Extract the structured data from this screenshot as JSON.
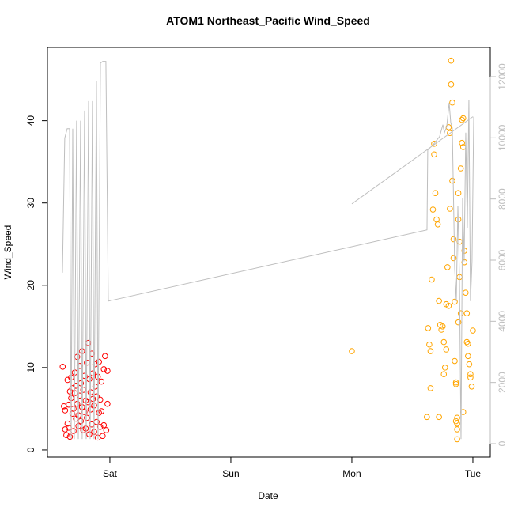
{
  "chart_data": {
    "type": "scatter",
    "title": "ATOM1 Northeast_Pacific Wind_Speed",
    "xlabel": "Date",
    "ylabel": "Wind_Speed",
    "xlim": [
      -0.516,
      3.144
    ],
    "xticks": [
      {
        "value": 0,
        "label": "Sat"
      },
      {
        "value": 1,
        "label": "Sun"
      },
      {
        "value": 2,
        "label": "Mon"
      },
      {
        "value": 3,
        "label": "Tue"
      }
    ],
    "ylim": [
      -0.87,
      48.9
    ],
    "yticks": [
      0,
      10,
      20,
      30,
      40
    ],
    "y2lim": [
      -440,
      12957
    ],
    "y2ticks": [
      0,
      2000,
      4000,
      6000,
      8000,
      10000,
      12000
    ],
    "series": [
      {
        "color": "#ff0000",
        "x": [
          -0.39,
          -0.38,
          -0.37,
          -0.37,
          -0.36,
          -0.35,
          -0.35,
          -0.34,
          -0.34,
          -0.33,
          -0.33,
          -0.32,
          -0.32,
          -0.31,
          -0.31,
          -0.3,
          -0.3,
          -0.29,
          -0.29,
          -0.28,
          -0.28,
          -0.27,
          -0.27,
          -0.26,
          -0.26,
          -0.25,
          -0.25,
          -0.24,
          -0.24,
          -0.23,
          -0.23,
          -0.22,
          -0.22,
          -0.21,
          -0.21,
          -0.2,
          -0.2,
          -0.19,
          -0.19,
          -0.18,
          -0.18,
          -0.17,
          -0.17,
          -0.16,
          -0.16,
          -0.15,
          -0.15,
          -0.14,
          -0.14,
          -0.13,
          -0.13,
          -0.12,
          -0.12,
          -0.11,
          -0.11,
          -0.1,
          -0.1,
          -0.09,
          -0.09,
          -0.08,
          -0.08,
          -0.07,
          -0.07,
          -0.06,
          -0.05,
          -0.05,
          -0.04,
          -0.03,
          -0.02,
          -0.02
        ],
        "values": [
          10.1,
          5.3,
          4.8,
          2.5,
          1.8,
          3.2,
          8.5,
          2.7,
          5.5,
          7.1,
          1.6,
          6.3,
          8.8,
          4.4,
          7.5,
          2.3,
          5.0,
          6.9,
          9.4,
          3.8,
          7.8,
          11.3,
          5.6,
          2.9,
          4.2,
          6.6,
          10.2,
          8.1,
          3.5,
          12.0,
          5.2,
          2.4,
          7.3,
          4.6,
          9.0,
          6.0,
          2.6,
          10.6,
          3.9,
          13.0,
          5.8,
          8.6,
          1.9,
          4.9,
          7.0,
          11.7,
          3.1,
          6.2,
          9.3,
          2.2,
          5.4,
          7.7,
          10.4,
          3.4,
          6.5,
          1.5,
          8.9,
          4.5,
          10.7,
          2.8,
          6.1,
          4.7,
          8.3,
          1.7,
          3.0,
          9.8,
          11.4,
          2.4,
          5.6,
          9.6
        ]
      },
      {
        "color": "#ffa500",
        "x": [
          2.0,
          2.62,
          2.63,
          2.64,
          2.65,
          2.65,
          2.66,
          2.67,
          2.68,
          2.68,
          2.69,
          2.7,
          2.71,
          2.72,
          2.72,
          2.73,
          2.74,
          2.75,
          2.76,
          2.76,
          2.77,
          2.78,
          2.78,
          2.79,
          2.8,
          2.8,
          2.81,
          2.81,
          2.82,
          2.82,
          2.83,
          2.83,
          2.84,
          2.84,
          2.85,
          2.85,
          2.86,
          2.86,
          2.87,
          2.87,
          2.87,
          2.88,
          2.88,
          2.89,
          2.89,
          2.9,
          2.9,
          2.91,
          2.91,
          2.92,
          2.92,
          2.93,
          2.93,
          2.94,
          2.95,
          2.95,
          2.96,
          2.96,
          2.97,
          2.98,
          2.98,
          2.99,
          3.0,
          2.86,
          2.87,
          2.88,
          2.92
        ],
        "values": [
          12.0,
          4.0,
          14.8,
          12.8,
          7.5,
          12.0,
          20.7,
          29.2,
          37.2,
          35.9,
          31.2,
          28.0,
          27.4,
          18.1,
          4.0,
          15.2,
          14.6,
          15.0,
          9.2,
          13.1,
          10.0,
          17.7,
          12.2,
          22.2,
          17.5,
          39.2,
          38.5,
          29.3,
          47.3,
          44.4,
          42.2,
          32.7,
          25.6,
          23.3,
          18.0,
          10.8,
          8.2,
          3.5,
          1.3,
          3.9,
          2.5,
          31.2,
          28.0,
          25.3,
          21.0,
          16.6,
          34.2,
          40.1,
          37.3,
          36.8,
          40.3,
          24.2,
          22.8,
          19.1,
          16.6,
          13.1,
          12.9,
          11.4,
          10.4,
          9.2,
          8.8,
          7.7,
          14.5,
          8.0,
          3.2,
          15.5,
          4.6
        ]
      },
      {
        "type": "line",
        "color": "#bebebe",
        "axis": "y2",
        "x": [
          -0.392,
          -0.373,
          -0.353,
          -0.333,
          -0.32,
          -0.307,
          -0.294,
          -0.275,
          -0.261,
          -0.242,
          -0.229,
          -0.209,
          -0.196,
          -0.176,
          -0.163,
          -0.144,
          -0.131,
          -0.111,
          -0.098,
          -0.078,
          -0.059,
          -0.033,
          -0.013,
          2.621,
          2.627,
          2.673,
          2.699,
          2.725,
          2.752,
          2.765,
          2.784,
          2.804,
          2.817,
          2.83,
          2.85,
          2.863,
          2.876,
          2.889,
          2.902,
          2.915,
          2.928,
          2.941,
          2.954,
          2.967,
          2.98,
          2.993,
          3.007,
          null,
          2.0,
          3.0
        ],
        "values": [
          5590,
          9990,
          10300,
          10300,
          150,
          10300,
          150,
          10560,
          150,
          10560,
          150,
          10890,
          150,
          11200,
          150,
          11200,
          150,
          11870,
          150,
          12440,
          12500,
          12500,
          4660,
          6990,
          9600,
          9780,
          9910,
          10040,
          10430,
          10170,
          10370,
          11150,
          10500,
          10320,
          5710,
          4660,
          7770,
          5440,
          150,
          8030,
          5960,
          10170,
          7060,
          11230,
          4660,
          5960,
          10690,
          null,
          7840,
          10690
        ]
      }
    ]
  }
}
